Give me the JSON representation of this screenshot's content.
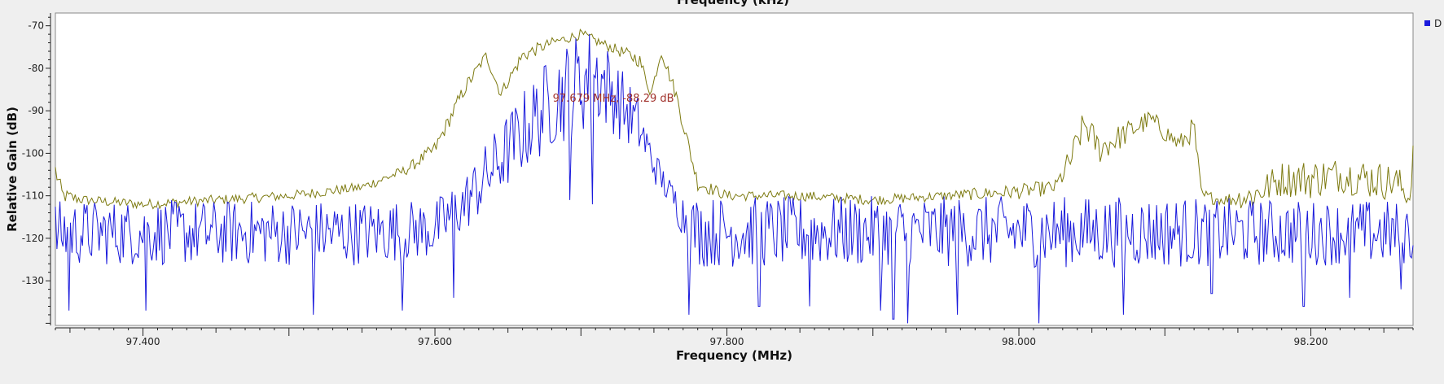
{
  "chart_data": {
    "type": "line",
    "top_axis_title_partial": "Frequency (kHz)",
    "xlabel": "Frequency (MHz)",
    "ylabel": "Relative Gain (dB)",
    "xlim": [
      97.34,
      98.27
    ],
    "ylim": [
      -140.5,
      -67
    ],
    "x_ticks": [
      {
        "value": 97.4,
        "label": "97.400"
      },
      {
        "value": 97.6,
        "label": "97.600"
      },
      {
        "value": 97.8,
        "label": "97.800"
      },
      {
        "value": 98.0,
        "label": "98.000"
      },
      {
        "value": 98.2,
        "label": "98.200"
      }
    ],
    "y_ticks": [
      {
        "value": -70,
        "label": "-70"
      },
      {
        "value": -80,
        "label": "-80"
      },
      {
        "value": -90,
        "label": "-90"
      },
      {
        "value": -100,
        "label": "-100"
      },
      {
        "value": -110,
        "label": "-110"
      },
      {
        "value": -120,
        "label": "-120"
      },
      {
        "value": -130,
        "label": "-130"
      }
    ],
    "legend": {
      "position": "right-top",
      "entries": [
        {
          "label": "D",
          "color": "#1a1adc"
        }
      ]
    },
    "annotation": {
      "text": "97.679 MHz, -88.29 dB",
      "x": 97.679,
      "y": -88.29
    },
    "grid": false,
    "series": [
      {
        "color": "#7d7a10",
        "envelope": {
          "x": [
            97.34,
            97.345,
            97.36,
            97.4,
            97.45,
            97.5,
            97.55,
            97.58,
            97.6,
            97.62,
            97.635,
            97.645,
            97.66,
            97.68,
            97.7,
            97.72,
            97.74,
            97.748,
            97.755,
            97.765,
            97.78,
            97.8,
            97.85,
            97.9,
            97.95,
            98.0,
            98.025,
            98.035,
            98.045,
            98.055,
            98.07,
            98.09,
            98.11,
            98.12,
            98.125,
            98.14,
            98.16,
            98.18,
            98.2,
            98.22,
            98.24,
            98.26,
            98.268,
            98.27
          ],
          "y": [
            -104,
            -110,
            -111,
            -112,
            -111,
            -110,
            -108,
            -104,
            -99,
            -85,
            -77,
            -86,
            -77,
            -74,
            -72,
            -75,
            -78,
            -86,
            -76,
            -86,
            -107,
            -110,
            -110,
            -111,
            -110,
            -109,
            -108,
            -102,
            -93,
            -99,
            -96,
            -92,
            -98,
            -94,
            -110,
            -111,
            -110,
            -106,
            -106,
            -105,
            -106,
            -107,
            -111,
            -99
          ],
          "spread": [
            4,
            3,
            2,
            2,
            2,
            2,
            2,
            2,
            3,
            3,
            2,
            2,
            3,
            2,
            2,
            2,
            3,
            2,
            2,
            3,
            3,
            2,
            2,
            2,
            2,
            3,
            3,
            6,
            6,
            6,
            5,
            4,
            4,
            5,
            3,
            2,
            6,
            7,
            8,
            7,
            8,
            7,
            3,
            4
          ]
        }
      },
      {
        "color": "#1a1adc",
        "envelope": {
          "x": [
            97.34,
            97.4,
            97.45,
            97.5,
            97.55,
            97.6,
            97.62,
            97.64,
            97.66,
            97.68,
            97.7,
            97.71,
            97.72,
            97.74,
            97.75,
            97.76,
            97.77,
            97.78,
            97.8,
            97.9,
            98.0,
            98.1,
            98.2,
            98.27
          ],
          "y": [
            -121,
            -121,
            -121,
            -121,
            -121,
            -120,
            -114,
            -106,
            -98,
            -91,
            -87,
            -85,
            -88,
            -96,
            -104,
            -110,
            -116,
            -121,
            -121,
            -121,
            -121,
            -121,
            -121,
            -121
          ],
          "spread": [
            11,
            11,
            11,
            11,
            11,
            10,
            10,
            12,
            14,
            16,
            18,
            17,
            14,
            10,
            6,
            5,
            8,
            12,
            12,
            12,
            12,
            12,
            11,
            11
          ]
        },
        "min_dips": [
          {
            "x": 97.349,
            "y": -137
          },
          {
            "x": 97.402,
            "y": -137
          },
          {
            "x": 97.517,
            "y": -138
          },
          {
            "x": 97.578,
            "y": -137
          },
          {
            "x": 97.613,
            "y": -134
          },
          {
            "x": 97.692,
            "y": -111
          },
          {
            "x": 97.708,
            "y": -112
          },
          {
            "x": 97.774,
            "y": -138
          },
          {
            "x": 97.822,
            "y": -136
          },
          {
            "x": 97.857,
            "y": -136
          },
          {
            "x": 97.905,
            "y": -137
          },
          {
            "x": 97.914,
            "y": -139
          },
          {
            "x": 97.924,
            "y": -140
          },
          {
            "x": 97.958,
            "y": -138
          },
          {
            "x": 98.014,
            "y": -140
          },
          {
            "x": 98.072,
            "y": -138
          },
          {
            "x": 98.132,
            "y": -133
          },
          {
            "x": 98.195,
            "y": -136
          },
          {
            "x": 98.227,
            "y": -134
          },
          {
            "x": 98.262,
            "y": -132
          }
        ]
      }
    ]
  }
}
